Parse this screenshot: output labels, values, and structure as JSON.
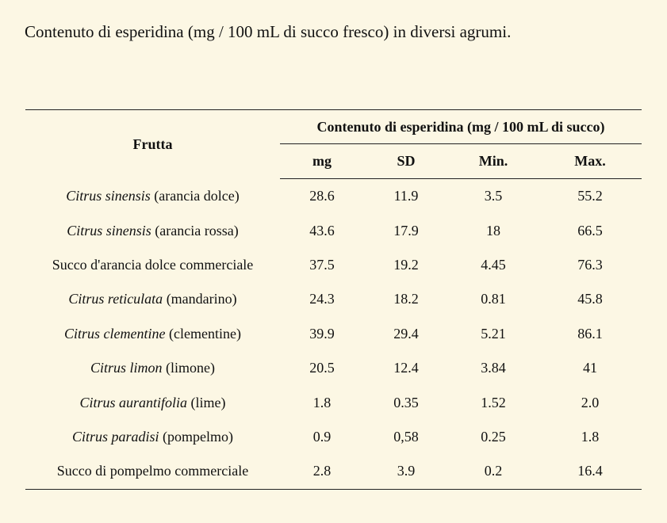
{
  "caption": "Contenuto di esperidina (mg / 100 mL di succo fresco) in diversi agrumi.",
  "table": {
    "fruit_header": "Frutta",
    "group_header": "Contenuto di esperidina (mg / 100 mL di succo)",
    "sub_headers": [
      "mg",
      "SD",
      "Min.",
      "Max."
    ],
    "rows": [
      {
        "species": "Citrus sinensis",
        "common": " (arancia dolce)",
        "mg": "28.6",
        "sd": "11.9",
        "min": "3.5",
        "max": "55.2"
      },
      {
        "species": "Citrus sinensis",
        "common": " (arancia rossa)",
        "mg": "43.6",
        "sd": "17.9",
        "min": "18",
        "max": "66.5"
      },
      {
        "species": "",
        "common": "Succo d'arancia dolce commerciale",
        "mg": "37.5",
        "sd": "19.2",
        "min": "4.45",
        "max": "76.3"
      },
      {
        "species": "Citrus reticulata",
        "common": " (mandarino)",
        "mg": "24.3",
        "sd": "18.2",
        "min": "0.81",
        "max": "45.8"
      },
      {
        "species": "Citrus clementine",
        "common": " (clementine)",
        "mg": "39.9",
        "sd": "29.4",
        "min": "5.21",
        "max": "86.1"
      },
      {
        "species": "Citrus limon",
        "common": " (limone)",
        "mg": "20.5",
        "sd": "12.4",
        "min": "3.84",
        "max": "41"
      },
      {
        "species": "Citrus aurantifolia",
        "common": " (lime)",
        "mg": "1.8",
        "sd": "0.35",
        "min": "1.52",
        "max": "2.0"
      },
      {
        "species": "Citrus paradisi",
        "common": " (pompelmo)",
        "mg": "0.9",
        "sd": "0,58",
        "min": "0.25",
        "max": "1.8"
      },
      {
        "species": "",
        "common": "Succo di pompelmo commerciale",
        "mg": "2.8",
        "sd": "3.9",
        "min": "0.2",
        "max": "16.4"
      }
    ]
  }
}
